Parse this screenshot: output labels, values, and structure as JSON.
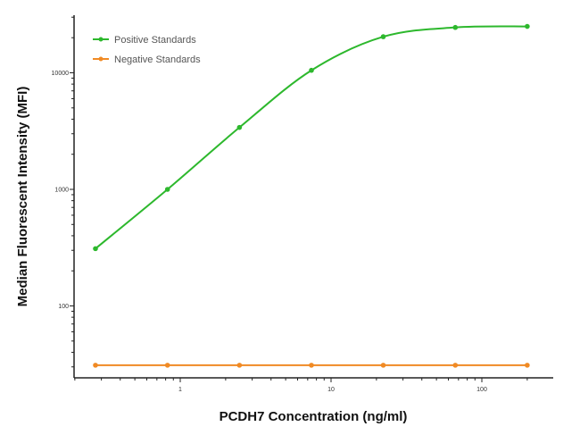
{
  "chart_data": {
    "type": "line",
    "title": "",
    "xlabel": "PCDH7 Concentration (ng/ml)",
    "ylabel": "Median  Fluorescent Intensity  (MFI)",
    "xscale": "log",
    "yscale": "log",
    "xlim": [
      0.23,
      280
    ],
    "ylim": [
      25,
      32000
    ],
    "xticks": [
      1,
      10,
      100
    ],
    "xtick_labels": [
      "1",
      "10",
      "100"
    ],
    "yticks": [
      100,
      1000,
      10000
    ],
    "ytick_labels": [
      "100",
      "1000",
      "10000"
    ],
    "grid": false,
    "legend_position": "top-left",
    "x": [
      0.274,
      0.823,
      2.47,
      7.41,
      22.2,
      66.7,
      200
    ],
    "series": [
      {
        "name": "Positive Standards",
        "color": "#2db82d",
        "values": [
          310,
          1000,
          3400,
          10500,
          20400,
          24500,
          25000
        ]
      },
      {
        "name": "Negative Standards",
        "color": "#f08a24",
        "values": [
          31,
          31,
          31,
          31,
          31,
          31,
          31
        ]
      }
    ]
  }
}
